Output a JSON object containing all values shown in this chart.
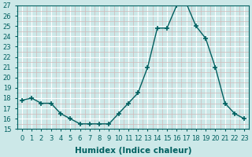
{
  "x": [
    0,
    1,
    2,
    3,
    4,
    5,
    6,
    7,
    8,
    9,
    10,
    11,
    12,
    13,
    14,
    15,
    16,
    17,
    18,
    19,
    20,
    21,
    22,
    23
  ],
  "y": [
    17.8,
    18.0,
    17.5,
    17.5,
    16.5,
    16.0,
    15.5,
    15.5,
    15.5,
    15.5,
    16.5,
    17.5,
    18.5,
    21.0,
    24.8,
    24.8,
    27.0,
    27.2,
    25.0,
    23.8,
    21.0,
    17.5,
    16.5,
    16.0
  ],
  "line_color": "#006060",
  "marker": "+",
  "marker_size": 4,
  "marker_lw": 1.2,
  "bg_color": "#cce8e8",
  "major_grid_color": "#ffffff",
  "minor_grid_color": "#d0b8b8",
  "xlabel": "Humidex (Indice chaleur)",
  "ylim": [
    15,
    27
  ],
  "xlim_min": -0.5,
  "xlim_max": 23.5,
  "yticks": [
    15,
    16,
    17,
    18,
    19,
    20,
    21,
    22,
    23,
    24,
    25,
    26,
    27
  ],
  "xticks": [
    0,
    1,
    2,
    3,
    4,
    5,
    6,
    7,
    8,
    9,
    10,
    11,
    12,
    13,
    14,
    15,
    16,
    17,
    18,
    19,
    20,
    21,
    22,
    23
  ],
  "tick_label_fontsize": 6,
  "xlabel_fontsize": 7.5,
  "line_width": 1.0,
  "spine_color": "#006060"
}
